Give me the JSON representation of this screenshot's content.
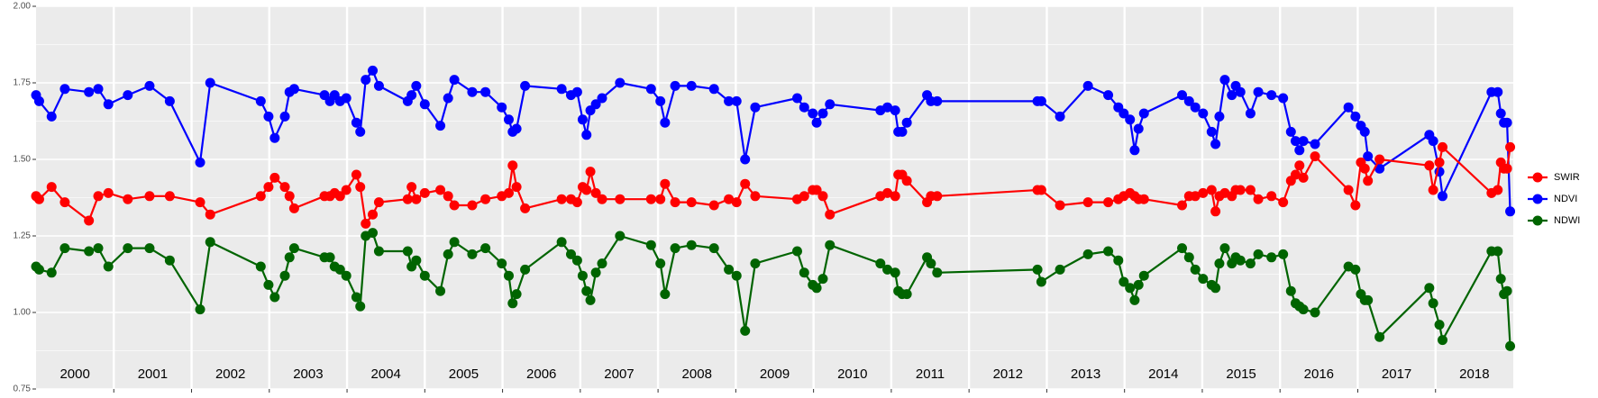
{
  "chart_data": {
    "type": "line",
    "x": [
      2000.0,
      2000.04,
      2000.2,
      2000.37,
      2000.68,
      2000.8,
      2000.93,
      2001.18,
      2001.46,
      2001.72,
      2002.11,
      2002.24,
      2002.89,
      2002.99,
      2003.07,
      2003.2,
      2003.26,
      2003.32,
      2003.71,
      2003.78,
      2003.84,
      2003.91,
      2003.99,
      2004.12,
      2004.17,
      2004.24,
      2004.33,
      2004.41,
      2004.78,
      2004.83,
      2004.89,
      2005.0,
      2005.2,
      2005.3,
      2005.38,
      2005.61,
      2005.78,
      2005.99,
      2006.08,
      2006.13,
      2006.18,
      2006.29,
      2006.76,
      2006.88,
      2006.96,
      2007.03,
      2007.08,
      2007.13,
      2007.2,
      2007.28,
      2007.51,
      2007.91,
      2008.03,
      2008.09,
      2008.22,
      2008.43,
      2008.72,
      2008.91,
      2009.01,
      2009.12,
      2009.25,
      2009.79,
      2009.88,
      2009.99,
      2010.04,
      2010.12,
      2010.21,
      2010.86,
      2010.95,
      2011.05,
      2011.09,
      2011.14,
      2011.2,
      2011.46,
      2011.51,
      2011.59,
      2012.88,
      2012.93,
      2013.17,
      2013.53,
      2013.79,
      2013.92,
      2013.99,
      2014.07,
      2014.13,
      2014.18,
      2014.25,
      2014.74,
      2014.83,
      2014.91,
      2015.01,
      2015.12,
      2015.17,
      2015.22,
      2015.29,
      2015.38,
      2015.43,
      2015.49,
      2015.62,
      2015.72,
      2015.89,
      2016.04,
      2016.14,
      2016.2,
      2016.25,
      2016.3,
      2016.45,
      2016.88,
      2016.97,
      2017.04,
      2017.09,
      2017.13,
      2017.28,
      2017.92,
      2017.97,
      2018.05,
      2018.09,
      2018.72,
      2018.8,
      2018.84,
      2018.88,
      2018.92,
      2018.96
    ],
    "series": [
      {
        "name": "SWIR",
        "color": "#ff0000",
        "values": [
          1.38,
          1.37,
          1.41,
          1.36,
          1.3,
          1.38,
          1.39,
          1.37,
          1.38,
          1.38,
          1.36,
          1.32,
          1.38,
          1.41,
          1.44,
          1.41,
          1.38,
          1.34,
          1.38,
          1.38,
          1.39,
          1.38,
          1.4,
          1.45,
          1.41,
          1.29,
          1.32,
          1.36,
          1.37,
          1.41,
          1.37,
          1.39,
          1.4,
          1.38,
          1.35,
          1.35,
          1.37,
          1.38,
          1.39,
          1.48,
          1.41,
          1.34,
          1.37,
          1.37,
          1.36,
          1.41,
          1.4,
          1.46,
          1.39,
          1.37,
          1.37,
          1.37,
          1.37,
          1.42,
          1.36,
          1.36,
          1.35,
          1.37,
          1.36,
          1.42,
          1.38,
          1.37,
          1.38,
          1.4,
          1.4,
          1.38,
          1.32,
          1.38,
          1.39,
          1.38,
          1.45,
          1.45,
          1.43,
          1.36,
          1.38,
          1.38,
          1.4,
          1.4,
          1.35,
          1.36,
          1.36,
          1.37,
          1.38,
          1.39,
          1.38,
          1.37,
          1.37,
          1.35,
          1.38,
          1.38,
          1.39,
          1.4,
          1.33,
          1.38,
          1.39,
          1.38,
          1.4,
          1.4,
          1.4,
          1.37,
          1.38,
          1.36,
          1.43,
          1.45,
          1.48,
          1.44,
          1.51,
          1.4,
          1.35,
          1.49,
          1.47,
          1.43,
          1.5,
          1.48,
          1.4,
          1.49,
          1.54,
          1.39,
          1.4,
          1.49,
          1.47,
          1.47,
          1.54
        ]
      },
      {
        "name": "NDVI",
        "color": "#0000ff",
        "values": [
          1.71,
          1.69,
          1.64,
          1.73,
          1.72,
          1.73,
          1.68,
          1.71,
          1.74,
          1.69,
          1.49,
          1.75,
          1.69,
          1.64,
          1.57,
          1.64,
          1.72,
          1.73,
          1.71,
          1.69,
          1.71,
          1.69,
          1.7,
          1.62,
          1.59,
          1.76,
          1.79,
          1.74,
          1.69,
          1.71,
          1.74,
          1.68,
          1.61,
          1.7,
          1.76,
          1.72,
          1.72,
          1.67,
          1.63,
          1.59,
          1.6,
          1.74,
          1.73,
          1.71,
          1.72,
          1.63,
          1.58,
          1.66,
          1.68,
          1.7,
          1.75,
          1.73,
          1.69,
          1.62,
          1.74,
          1.74,
          1.73,
          1.69,
          1.69,
          1.5,
          1.67,
          1.7,
          1.67,
          1.65,
          1.62,
          1.65,
          1.68,
          1.66,
          1.67,
          1.66,
          1.59,
          1.59,
          1.62,
          1.71,
          1.69,
          1.69,
          1.69,
          1.69,
          1.64,
          1.74,
          1.71,
          1.67,
          1.65,
          1.63,
          1.53,
          1.6,
          1.65,
          1.71,
          1.69,
          1.67,
          1.65,
          1.59,
          1.55,
          1.64,
          1.76,
          1.71,
          1.74,
          1.72,
          1.65,
          1.72,
          1.71,
          1.7,
          1.59,
          1.56,
          1.53,
          1.56,
          1.55,
          1.67,
          1.64,
          1.61,
          1.59,
          1.51,
          1.47,
          1.58,
          1.56,
          1.46,
          1.38,
          1.72,
          1.72,
          1.65,
          1.62,
          1.62,
          1.33
        ]
      },
      {
        "name": "NDWI",
        "color": "#006400",
        "values": [
          1.15,
          1.14,
          1.13,
          1.21,
          1.2,
          1.21,
          1.15,
          1.21,
          1.21,
          1.17,
          1.01,
          1.23,
          1.15,
          1.09,
          1.05,
          1.12,
          1.18,
          1.21,
          1.18,
          1.18,
          1.15,
          1.14,
          1.12,
          1.05,
          1.02,
          1.25,
          1.26,
          1.2,
          1.2,
          1.15,
          1.17,
          1.12,
          1.07,
          1.19,
          1.23,
          1.19,
          1.21,
          1.16,
          1.12,
          1.03,
          1.06,
          1.14,
          1.23,
          1.19,
          1.17,
          1.12,
          1.07,
          1.04,
          1.13,
          1.16,
          1.25,
          1.22,
          1.16,
          1.06,
          1.21,
          1.22,
          1.21,
          1.14,
          1.12,
          0.94,
          1.16,
          1.2,
          1.13,
          1.09,
          1.08,
          1.11,
          1.22,
          1.16,
          1.14,
          1.13,
          1.07,
          1.06,
          1.06,
          1.18,
          1.16,
          1.13,
          1.14,
          1.1,
          1.14,
          1.19,
          1.2,
          1.17,
          1.1,
          1.08,
          1.04,
          1.09,
          1.12,
          1.21,
          1.18,
          1.14,
          1.11,
          1.09,
          1.08,
          1.16,
          1.21,
          1.16,
          1.18,
          1.17,
          1.16,
          1.19,
          1.18,
          1.19,
          1.07,
          1.03,
          1.02,
          1.01,
          1.0,
          1.15,
          1.14,
          1.06,
          1.04,
          1.04,
          0.92,
          1.08,
          1.03,
          0.96,
          0.91,
          1.2,
          1.2,
          1.11,
          1.06,
          1.07,
          0.89
        ]
      }
    ],
    "xlim": [
      2000,
      2019
    ],
    "xticks": [
      2001,
      2002,
      2003,
      2004,
      2005,
      2006,
      2007,
      2008,
      2009,
      2010,
      2011,
      2012,
      2013,
      2014,
      2015,
      2016,
      2017,
      2018
    ],
    "year_labels": [
      {
        "value": 2000.5,
        "label": "2000"
      },
      {
        "value": 2001.5,
        "label": "2001"
      },
      {
        "value": 2002.5,
        "label": "2002"
      },
      {
        "value": 2003.5,
        "label": "2003"
      },
      {
        "value": 2004.5,
        "label": "2004"
      },
      {
        "value": 2005.5,
        "label": "2005"
      },
      {
        "value": 2006.5,
        "label": "2006"
      },
      {
        "value": 2007.5,
        "label": "2007"
      },
      {
        "value": 2008.5,
        "label": "2008"
      },
      {
        "value": 2009.5,
        "label": "2009"
      },
      {
        "value": 2010.5,
        "label": "2010"
      },
      {
        "value": 2011.5,
        "label": "2011"
      },
      {
        "value": 2012.5,
        "label": "2012"
      },
      {
        "value": 2013.5,
        "label": "2013"
      },
      {
        "value": 2014.5,
        "label": "2014"
      },
      {
        "value": 2015.5,
        "label": "2015"
      },
      {
        "value": 2016.5,
        "label": "2016"
      },
      {
        "value": 2017.5,
        "label": "2017"
      },
      {
        "value": 2018.5,
        "label": "2018"
      }
    ],
    "ylim": [
      0.75,
      2.0
    ],
    "yticks": [
      {
        "value": 0.75,
        "label": "0.75"
      },
      {
        "value": 1.0,
        "label": "1.00"
      },
      {
        "value": 1.25,
        "label": "1.25"
      },
      {
        "value": 1.5,
        "label": "1.50"
      },
      {
        "value": 1.75,
        "label": "1.75"
      },
      {
        "value": 2.0,
        "label": "2.00"
      }
    ],
    "grid": true,
    "legend": "right"
  }
}
